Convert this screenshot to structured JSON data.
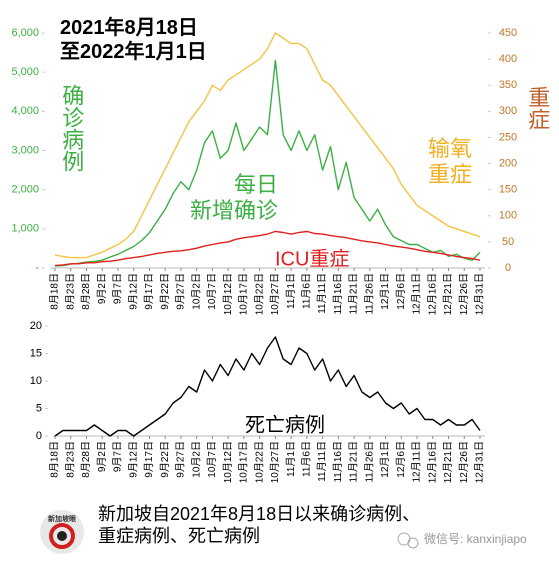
{
  "title": "2021年8月18日至2022年1月1日",
  "caption": "新加坡自2021年8月18日以来确诊病例、重症病例、死亡病例",
  "logo": "新加坡眼",
  "watermark": "微信号: kanxinjiapo",
  "chart_data": [
    {
      "type": "line",
      "y_label": "确诊病例",
      "y2_label": "重症",
      "categories": [
        "8月18日",
        null,
        "8月23日",
        null,
        "8月28日",
        null,
        "9月2日",
        null,
        "9月7日",
        null,
        "9月12日",
        null,
        "9月17日",
        null,
        "9月22日",
        null,
        "9月27日",
        null,
        "10月2日",
        null,
        "10月7日",
        null,
        "10月12日",
        null,
        "10月17日",
        null,
        "10月22日",
        null,
        "10月27日",
        null,
        "11月1日",
        null,
        "11月6日",
        null,
        "11月11日",
        null,
        "11月16日",
        null,
        "11月21日",
        null,
        "11月26日",
        null,
        "12月1日",
        null,
        "12月6日",
        null,
        "12月11日",
        null,
        "12月16日",
        null,
        "12月21日",
        null,
        "12月26日",
        null,
        "12月31日"
      ],
      "series": [
        {
          "name": "每日新增确诊",
          "color": "#3cb043",
          "values": [
            50,
            60,
            100,
            120,
            150,
            170,
            200,
            280,
            350,
            450,
            550,
            700,
            900,
            1200,
            1500,
            1900,
            2200,
            2000,
            2500,
            3200,
            3500,
            2800,
            3000,
            3700,
            3000,
            3300,
            3600,
            3400,
            5300,
            3400,
            3000,
            3500,
            3000,
            3400,
            2500,
            3100,
            2000,
            2700,
            1800,
            1500,
            1200,
            1500,
            1100,
            800,
            700,
            600,
            600,
            500,
            400,
            450,
            300,
            350,
            250,
            200,
            400
          ]
        },
        {
          "name": "输氧重症",
          "color": "#f5c242",
          "axis": "y2",
          "values": [
            25,
            22,
            20,
            20,
            20,
            25,
            30,
            38,
            45,
            55,
            70,
            100,
            130,
            160,
            190,
            220,
            250,
            280,
            300,
            320,
            350,
            340,
            360,
            370,
            380,
            390,
            400,
            420,
            450,
            440,
            430,
            430,
            420,
            390,
            360,
            350,
            330,
            310,
            290,
            270,
            250,
            230,
            210,
            190,
            160,
            140,
            120,
            110,
            100,
            90,
            80,
            75,
            70,
            65,
            60
          ]
        },
        {
          "name": "ICU重症",
          "color": "#e02020",
          "axis": "y2",
          "values": [
            5,
            6,
            8,
            8,
            10,
            10,
            12,
            13,
            15,
            18,
            20,
            22,
            25,
            28,
            30,
            32,
            33,
            35,
            38,
            42,
            45,
            48,
            50,
            55,
            58,
            60,
            62,
            65,
            70,
            68,
            65,
            68,
            70,
            66,
            65,
            62,
            60,
            58,
            55,
            52,
            50,
            48,
            45,
            42,
            40,
            38,
            35,
            32,
            30,
            28,
            25,
            22,
            20,
            18,
            15
          ]
        }
      ],
      "ylim": [
        0,
        6000
      ],
      "yticks": [
        {
          "value": 0,
          "label": "-"
        },
        {
          "value": 1000,
          "label": "1,000"
        },
        {
          "value": 2000,
          "label": "2,000"
        },
        {
          "value": 3000,
          "label": "3,000"
        },
        {
          "value": 4000,
          "label": "4,000"
        },
        {
          "value": 5000,
          "label": "5,000"
        },
        {
          "value": 6000,
          "label": "6,000"
        }
      ],
      "y2lim": [
        0,
        450
      ],
      "y2ticks": [
        0,
        50,
        100,
        150,
        200,
        250,
        300,
        350,
        400,
        450
      ]
    },
    {
      "type": "line",
      "categories": [
        "8月18日",
        null,
        "8月23日",
        null,
        "8月28日",
        null,
        "9月2日",
        null,
        "9月7日",
        null,
        "9月12日",
        null,
        "9月17日",
        null,
        "9月22日",
        null,
        "9月27日",
        null,
        "10月2日",
        null,
        "10月7日",
        null,
        "10月12日",
        null,
        "10月17日",
        null,
        "10月22日",
        null,
        "10月27日",
        null,
        "11月1日",
        null,
        "11月6日",
        null,
        "11月11日",
        null,
        "11月16日",
        null,
        "11月21日",
        null,
        "11月26日",
        null,
        "12月1日",
        null,
        "12月6日",
        null,
        "12月11日",
        null,
        "12月16日",
        null,
        "12月21日",
        null,
        "12月26日",
        null,
        "12月31日"
      ],
      "series": [
        {
          "name": "死亡病例",
          "color": "#000000",
          "values": [
            0,
            1,
            1,
            1,
            1,
            2,
            1,
            0,
            1,
            1,
            0,
            1,
            2,
            3,
            4,
            6,
            7,
            9,
            8,
            12,
            10,
            13,
            11,
            14,
            12,
            15,
            13,
            16,
            18,
            14,
            13,
            16,
            15,
            12,
            14,
            10,
            12,
            9,
            11,
            8,
            7,
            8,
            6,
            5,
            6,
            4,
            5,
            3,
            3,
            2,
            3,
            2,
            2,
            3,
            1
          ]
        }
      ],
      "ylim": [
        0,
        20
      ],
      "yticks": [
        0,
        5,
        10,
        15,
        20
      ]
    }
  ]
}
